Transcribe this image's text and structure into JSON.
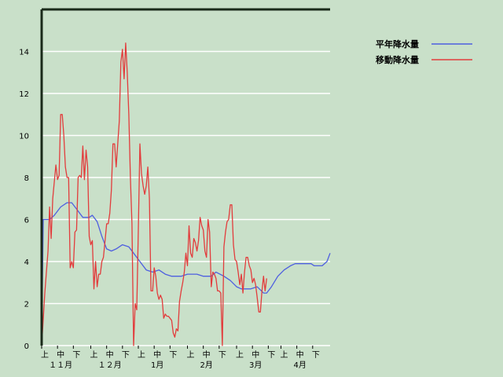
{
  "chart_data": {
    "type": "line",
    "ylim": [
      0,
      16
    ],
    "yticks": [
      0,
      2,
      4,
      6,
      8,
      10,
      12,
      14
    ],
    "xlim": [
      0,
      182
    ],
    "xlabel": "",
    "ylabel": "",
    "grid": true,
    "legend": "top-right",
    "period_ticks": [
      {
        "x": 0,
        "label": "上"
      },
      {
        "x": 10,
        "label": "中"
      },
      {
        "x": 20,
        "label": "下"
      },
      {
        "x": 31,
        "label": "上"
      },
      {
        "x": 41,
        "label": "中"
      },
      {
        "x": 51,
        "label": "下"
      },
      {
        "x": 61,
        "label": "上"
      },
      {
        "x": 71,
        "label": "中"
      },
      {
        "x": 81,
        "label": "下"
      },
      {
        "x": 92,
        "label": "上"
      },
      {
        "x": 102,
        "label": "中"
      },
      {
        "x": 112,
        "label": "下"
      },
      {
        "x": 123,
        "label": "上"
      },
      {
        "x": 133,
        "label": "中"
      },
      {
        "x": 143,
        "label": "下"
      },
      {
        "x": 151,
        "label": "上"
      },
      {
        "x": 161,
        "label": "中"
      },
      {
        "x": 171,
        "label": "下"
      }
    ],
    "month_labels": [
      {
        "x": 10,
        "label": "１１月"
      },
      {
        "x": 41,
        "label": "１２月"
      },
      {
        "x": 71,
        "label": "1月"
      },
      {
        "x": 102,
        "label": "2月"
      },
      {
        "x": 133,
        "label": "3月"
      },
      {
        "x": 161,
        "label": "4月"
      }
    ],
    "series": [
      {
        "name": "平年降水量",
        "color": "#4e5fe0",
        "points": [
          [
            0,
            0
          ],
          [
            1,
            6.0
          ],
          [
            5,
            6.0
          ],
          [
            8,
            6.2
          ],
          [
            12,
            6.6
          ],
          [
            16,
            6.8
          ],
          [
            19,
            6.8
          ],
          [
            22,
            6.5
          ],
          [
            26,
            6.1
          ],
          [
            30,
            6.1
          ],
          [
            32,
            6.2
          ],
          [
            35,
            5.9
          ],
          [
            38,
            5.2
          ],
          [
            41,
            4.6
          ],
          [
            44,
            4.5
          ],
          [
            47,
            4.6
          ],
          [
            51,
            4.8
          ],
          [
            55,
            4.7
          ],
          [
            58,
            4.4
          ],
          [
            62,
            4.0
          ],
          [
            66,
            3.6
          ],
          [
            70,
            3.5
          ],
          [
            74,
            3.6
          ],
          [
            78,
            3.4
          ],
          [
            82,
            3.3
          ],
          [
            88,
            3.3
          ],
          [
            92,
            3.4
          ],
          [
            98,
            3.4
          ],
          [
            102,
            3.3
          ],
          [
            107,
            3.3
          ],
          [
            110,
            3.5
          ],
          [
            115,
            3.3
          ],
          [
            119,
            3.1
          ],
          [
            123,
            2.8
          ],
          [
            126,
            2.7
          ],
          [
            132,
            2.7
          ],
          [
            136,
            2.8
          ],
          [
            140,
            2.5
          ],
          [
            142,
            2.5
          ],
          [
            145,
            2.8
          ],
          [
            149,
            3.3
          ],
          [
            153,
            3.6
          ],
          [
            157,
            3.8
          ],
          [
            160,
            3.9
          ],
          [
            166,
            3.9
          ],
          [
            170,
            3.9
          ],
          [
            172,
            3.8
          ],
          [
            177,
            3.8
          ],
          [
            180,
            4.0
          ],
          [
            182,
            4.4
          ]
        ]
      },
      {
        "name": "移動降水量",
        "color": "#e23c3c",
        "points": [
          [
            0,
            0
          ],
          [
            2,
            2.5
          ],
          [
            4,
            4.5
          ],
          [
            5,
            6.6
          ],
          [
            6,
            5.1
          ],
          [
            7,
            7.0
          ],
          [
            9,
            8.6
          ],
          [
            10,
            7.9
          ],
          [
            11,
            8.1
          ],
          [
            12,
            11.0
          ],
          [
            13,
            11.0
          ],
          [
            14,
            10.0
          ],
          [
            15,
            8.5
          ],
          [
            16,
            8.0
          ],
          [
            17,
            8.0
          ],
          [
            18,
            3.7
          ],
          [
            19,
            4.0
          ],
          [
            20,
            3.7
          ],
          [
            21,
            5.4
          ],
          [
            22,
            5.5
          ],
          [
            23,
            8.0
          ],
          [
            24,
            8.1
          ],
          [
            25,
            8.0
          ],
          [
            26,
            9.5
          ],
          [
            27,
            7.9
          ],
          [
            28,
            9.3
          ],
          [
            29,
            8.5
          ],
          [
            30,
            5.2
          ],
          [
            31,
            4.8
          ],
          [
            32,
            5.0
          ],
          [
            33,
            2.7
          ],
          [
            34,
            4.0
          ],
          [
            35,
            2.8
          ],
          [
            36,
            3.4
          ],
          [
            37,
            3.4
          ],
          [
            38,
            4.0
          ],
          [
            39,
            4.2
          ],
          [
            40,
            5.0
          ],
          [
            41,
            5.8
          ],
          [
            42,
            5.8
          ],
          [
            43,
            6.3
          ],
          [
            44,
            7.4
          ],
          [
            45,
            9.6
          ],
          [
            46,
            9.6
          ],
          [
            47,
            8.5
          ],
          [
            48,
            9.6
          ],
          [
            49,
            10.7
          ],
          [
            50,
            13.5
          ],
          [
            51,
            14.1
          ],
          [
            52,
            12.7
          ],
          [
            53,
            14.4
          ],
          [
            54,
            13.0
          ],
          [
            55,
            11.0
          ],
          [
            56,
            8.0
          ],
          [
            57,
            5.8
          ],
          [
            58,
            0
          ],
          [
            59,
            2.0
          ],
          [
            60,
            1.7
          ],
          [
            61,
            5.5
          ],
          [
            62,
            9.6
          ],
          [
            63,
            8.2
          ],
          [
            64,
            7.6
          ],
          [
            65,
            7.2
          ],
          [
            66,
            7.6
          ],
          [
            67,
            8.5
          ],
          [
            68,
            7.0
          ],
          [
            69,
            2.6
          ],
          [
            70,
            2.6
          ],
          [
            71,
            3.7
          ],
          [
            72,
            3.3
          ],
          [
            73,
            2.5
          ],
          [
            74,
            2.2
          ],
          [
            75,
            2.4
          ],
          [
            76,
            2.2
          ],
          [
            77,
            1.3
          ],
          [
            78,
            1.5
          ],
          [
            79,
            1.4
          ],
          [
            80,
            1.4
          ],
          [
            81,
            1.3
          ],
          [
            82,
            1.2
          ],
          [
            83,
            0.6
          ],
          [
            84,
            0.4
          ],
          [
            85,
            0.8
          ],
          [
            86,
            0.7
          ],
          [
            87,
            2.1
          ],
          [
            88,
            2.6
          ],
          [
            89,
            3.0
          ],
          [
            90,
            3.5
          ],
          [
            91,
            4.4
          ],
          [
            92,
            3.8
          ],
          [
            93,
            5.7
          ],
          [
            94,
            4.4
          ],
          [
            95,
            4.2
          ],
          [
            96,
            5.1
          ],
          [
            97,
            4.9
          ],
          [
            98,
            4.5
          ],
          [
            99,
            5.0
          ],
          [
            100,
            6.1
          ],
          [
            101,
            5.7
          ],
          [
            102,
            5.5
          ],
          [
            103,
            4.5
          ],
          [
            104,
            4.2
          ],
          [
            105,
            6.0
          ],
          [
            106,
            5.4
          ],
          [
            107,
            2.8
          ],
          [
            108,
            3.5
          ],
          [
            109,
            3.4
          ],
          [
            110,
            3.2
          ],
          [
            111,
            2.6
          ],
          [
            112,
            2.6
          ],
          [
            113,
            2.5
          ],
          [
            114,
            0
          ],
          [
            115,
            4.7
          ],
          [
            116,
            5.4
          ],
          [
            117,
            5.9
          ],
          [
            118,
            6.0
          ],
          [
            119,
            6.7
          ],
          [
            120,
            6.7
          ],
          [
            121,
            4.8
          ],
          [
            122,
            4.1
          ],
          [
            123,
            4.0
          ],
          [
            124,
            3.5
          ],
          [
            125,
            2.9
          ],
          [
            126,
            3.4
          ],
          [
            127,
            2.5
          ],
          [
            128,
            3.5
          ],
          [
            129,
            4.2
          ],
          [
            130,
            4.2
          ],
          [
            131,
            3.8
          ],
          [
            132,
            3.6
          ],
          [
            133,
            3.0
          ],
          [
            134,
            3.2
          ],
          [
            135,
            2.9
          ],
          [
            136,
            2.3
          ],
          [
            137,
            1.6
          ],
          [
            138,
            1.6
          ],
          [
            139,
            2.6
          ],
          [
            140,
            3.3
          ],
          [
            141,
            2.6
          ],
          [
            142,
            3.2
          ]
        ]
      }
    ]
  }
}
